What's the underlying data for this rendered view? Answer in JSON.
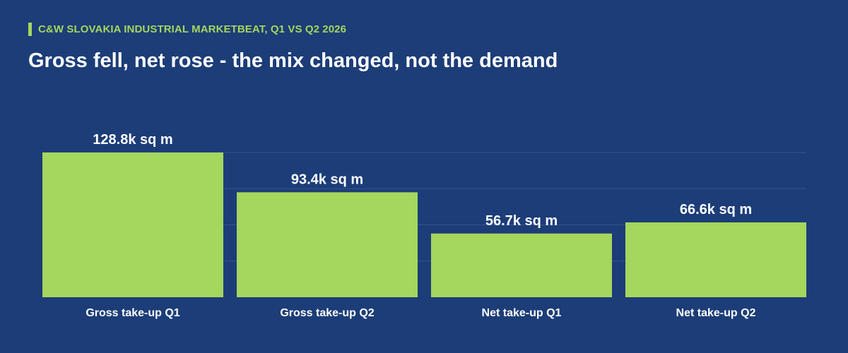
{
  "header": {
    "eyebrow": "C&W SLOVAKIA INDUSTRIAL MARKETBEAT, Q1 VS Q2 2026",
    "headline": "Gross fell, net rose - the mix changed, not the demand"
  },
  "colors": {
    "background": "#1c3d78",
    "accent": "#a5d65e",
    "bar": "#a5d65e",
    "gridline": "#34558e",
    "text": "#ffffff"
  },
  "chart_data": {
    "type": "bar",
    "title": "Gross fell, net rose - the mix changed, not the demand",
    "xlabel": "",
    "ylabel": "",
    "unit": "k sq m",
    "categories": [
      "Gross take-up Q1",
      "Gross take-up Q2",
      "Net take-up Q1",
      "Net take-up Q2"
    ],
    "values": [
      128.8,
      93.4,
      56.7,
      66.6
    ],
    "data_labels": [
      "128.8k sq m",
      "93.4k sq m",
      "56.7k sq m",
      "66.6k sq m"
    ],
    "ylim": [
      0,
      128.8
    ],
    "grid": true,
    "legend": "none"
  }
}
